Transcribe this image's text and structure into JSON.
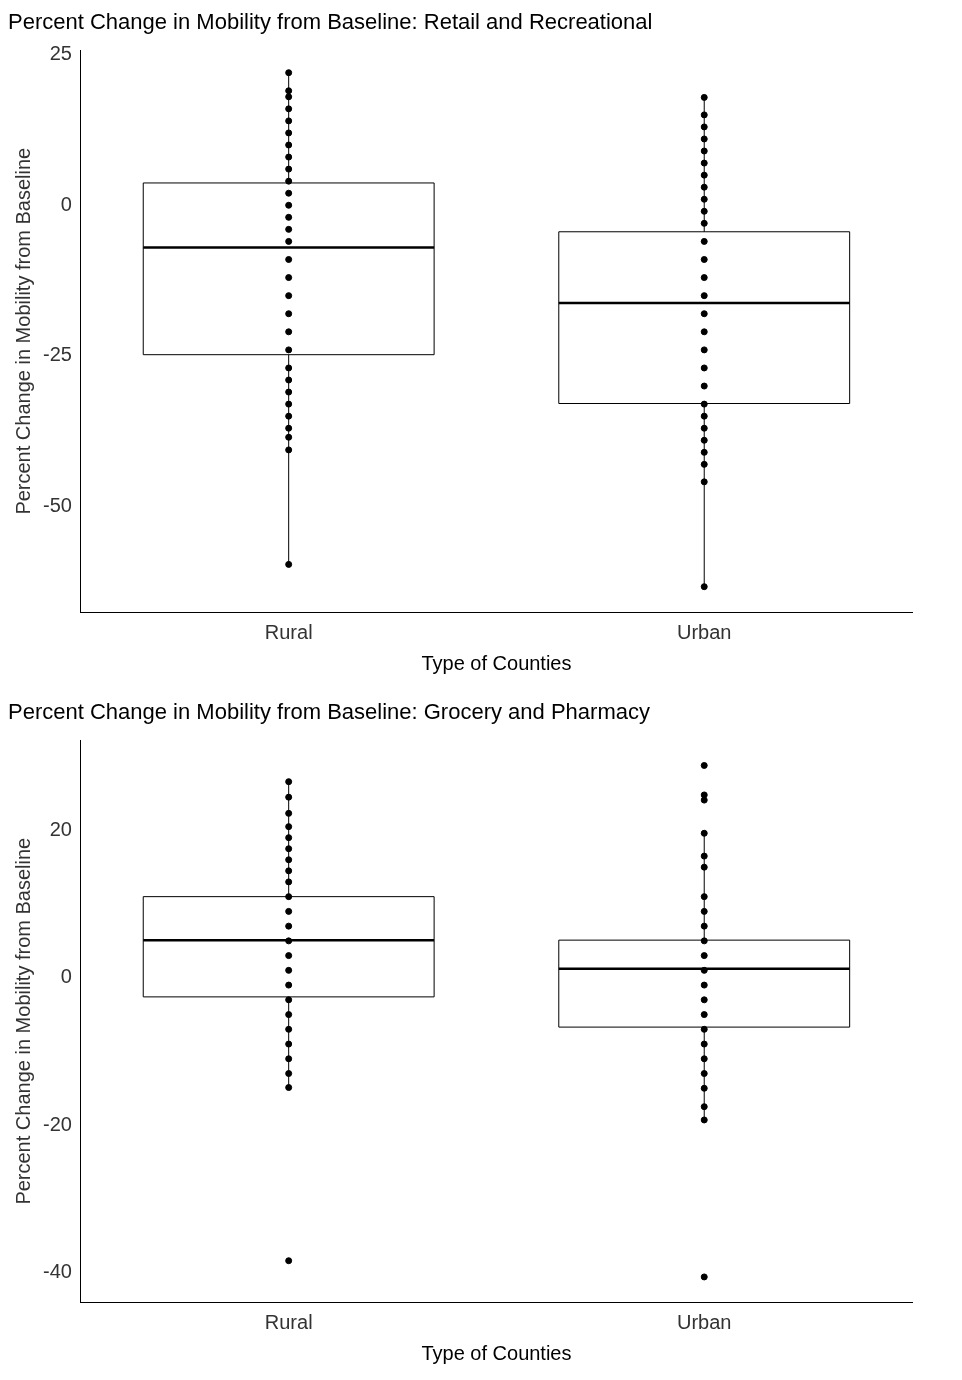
{
  "chart_data": [
    {
      "type": "box",
      "title": "Percent Change in Mobility from Baseline: Retail and Recreational",
      "xlabel": "Type of Counties",
      "ylabel": "Percent Change in Mobility from Baseline",
      "categories": [
        "Rural",
        "Urban"
      ],
      "boxes": [
        {
          "low": -59.6,
          "q1": -24.8,
          "median": -7.0,
          "q3": 3.7,
          "high": 22
        },
        {
          "low": -63.3,
          "q1": -32.9,
          "median": -16.2,
          "q3": -4.4,
          "high": 17.9
        }
      ],
      "ylim": [
        -67.5,
        25.7
      ],
      "yticks": [
        25,
        0,
        -25,
        -50
      ],
      "series": [
        {
          "type": "scatter",
          "color": "#000000",
          "x": [
            "Rural",
            "Rural",
            "Rural",
            "Rural",
            "Rural",
            "Rural",
            "Rural",
            "Rural",
            "Rural",
            "Rural",
            "Rural",
            "Rural",
            "Rural",
            "Rural",
            "Rural",
            "Rural",
            "Rural",
            "Rural",
            "Rural",
            "Rural",
            "Rural",
            "Rural",
            "Rural",
            "Rural",
            "Rural",
            "Rural",
            "Rural",
            "Rural",
            "Rural",
            "Rural"
          ],
          "values": [
            22,
            19,
            18,
            16,
            14,
            12,
            10,
            8,
            6,
            4,
            2,
            0,
            -2,
            -4,
            -6,
            -9,
            -12,
            -15,
            -18,
            -21,
            -24,
            -27,
            -29,
            -31,
            -33,
            -35,
            -37,
            -38.5,
            -40.6,
            -59.6
          ]
        },
        {
          "type": "scatter",
          "color": "#000000",
          "x": [
            "Urban",
            "Urban",
            "Urban",
            "Urban",
            "Urban",
            "Urban",
            "Urban",
            "Urban",
            "Urban",
            "Urban",
            "Urban",
            "Urban",
            "Urban",
            "Urban",
            "Urban",
            "Urban",
            "Urban",
            "Urban",
            "Urban",
            "Urban",
            "Urban",
            "Urban",
            "Urban",
            "Urban",
            "Urban",
            "Urban",
            "Urban",
            "Urban"
          ],
          "values": [
            17.9,
            15,
            13,
            11,
            9,
            7,
            5,
            3,
            1,
            -1,
            -3,
            -6,
            -9,
            -12,
            -15,
            -18,
            -21,
            -24,
            -27,
            -30,
            -33,
            -35,
            -37,
            -39,
            -41,
            -43,
            -45.9,
            -63.3
          ]
        }
      ],
      "marker": "circle"
    },
    {
      "type": "box",
      "title": "Percent Change in Mobility from Baseline: Grocery and Pharmacy",
      "xlabel": "Type of Counties",
      "ylabel": "Percent Change in Mobility from Baseline",
      "categories": [
        "Rural",
        "Urban"
      ],
      "boxes": [
        {
          "low": -14.9,
          "q1": -2.6,
          "median": 5.1,
          "q3": 11.0,
          "high": 26.6
        },
        {
          "low": -19.3,
          "q1": -6.7,
          "median": 1.2,
          "q3": 5.1,
          "high": 19.6
        }
      ],
      "ylim": [
        -44,
        32.2
      ],
      "yticks": [
        20,
        0,
        -20,
        -40
      ],
      "series": [
        {
          "type": "scatter",
          "color": "#000000",
          "x": [
            "Rural",
            "Rural",
            "Rural",
            "Rural",
            "Rural",
            "Rural",
            "Rural",
            "Rural",
            "Rural",
            "Rural",
            "Rural",
            "Rural",
            "Rural",
            "Rural",
            "Rural",
            "Rural",
            "Rural",
            "Rural",
            "Rural",
            "Rural",
            "Rural",
            "Rural",
            "Rural",
            "Rural"
          ],
          "values": [
            26.6,
            24.5,
            22.3,
            20.5,
            19,
            17.5,
            16,
            14.5,
            13,
            11,
            9,
            7,
            5,
            3,
            1,
            -1,
            -3,
            -5,
            -7,
            -9,
            -11,
            -13,
            -14.9,
            -38.4
          ]
        },
        {
          "type": "scatter",
          "color": "#000000",
          "x": [
            "Urban",
            "Urban",
            "Urban",
            "Urban",
            "Urban",
            "Urban",
            "Urban",
            "Urban",
            "Urban",
            "Urban",
            "Urban",
            "Urban",
            "Urban",
            "Urban",
            "Urban",
            "Urban",
            "Urban",
            "Urban",
            "Urban",
            "Urban",
            "Urban",
            "Urban",
            "Urban"
          ],
          "values": [
            28.8,
            24.8,
            24.1,
            19.6,
            16.5,
            15,
            11,
            9,
            7,
            5,
            3,
            1,
            -1,
            -3,
            -5,
            -7,
            -9,
            -11,
            -13,
            -15,
            -17.5,
            -19.3,
            -40.6
          ]
        }
      ],
      "marker": "circle"
    }
  ]
}
